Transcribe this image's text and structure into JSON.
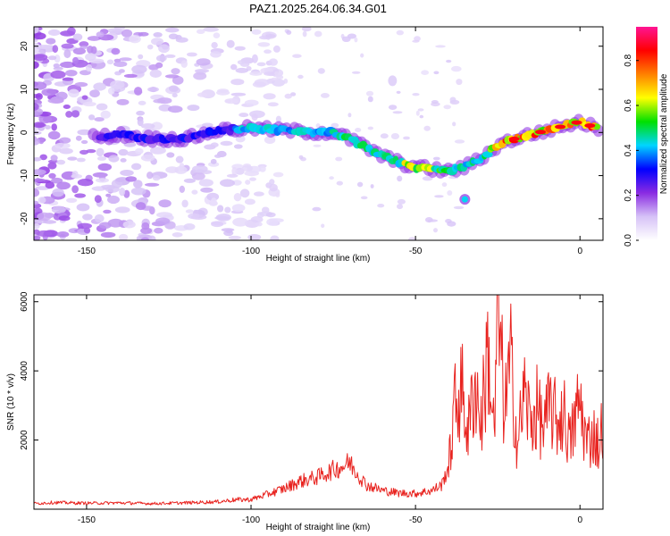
{
  "title": "PAZ1.2025.264.06.34.G01",
  "colors": {
    "axis": "#000000",
    "snr_line": "#e8231f"
  },
  "chart_data": [
    {
      "type": "heatmap",
      "name": "spectrogram",
      "xlabel": "Height of straight line (km)",
      "ylabel": "Frequency (Hz)",
      "xlim": [
        -166,
        7
      ],
      "ylim": [
        -25,
        24.5
      ],
      "xticks": [
        -150,
        -100,
        -50,
        0
      ],
      "xtick_labels": [
        "-150",
        "-100",
        "-50",
        "0"
      ],
      "yticks": [
        -20,
        -10,
        0,
        10,
        20
      ],
      "ytick_labels": [
        "-20",
        "-10",
        "0",
        "10",
        "20"
      ],
      "ridge_x": [
        -145,
        -140,
        -130,
        -120,
        -110,
        -100,
        -90,
        -80,
        -75,
        -70,
        -65,
        -60,
        -55,
        -50,
        -45,
        -40,
        -35,
        -30,
        -25,
        -20,
        -15,
        -10,
        -5,
        0,
        5
      ],
      "ridge_f": [
        -1.0,
        -0.5,
        -1.5,
        -1.5,
        0.5,
        1.0,
        0.5,
        0.0,
        0.0,
        -1.5,
        -3.5,
        -5.5,
        -7.0,
        -8.0,
        -8.5,
        -9.0,
        -8.0,
        -6.0,
        -3.0,
        -1.5,
        -0.5,
        0.5,
        1.5,
        2.5,
        1.0
      ],
      "isolated_peak": {
        "x": -35,
        "f": -15.5
      },
      "colorbar": {
        "label": "Normalized spectral amplitude",
        "range": [
          0,
          0.95
        ],
        "ticks": [
          0.0,
          0.2,
          0.4,
          0.6,
          0.8
        ],
        "tick_labels": [
          "0.0",
          "0.2",
          "0.4",
          "0.6",
          "0.8"
        ],
        "colors": [
          "#ffffff",
          "#d6c2f7",
          "#8a2be2",
          "#0000ff",
          "#00d5ff",
          "#00e000",
          "#ffff00",
          "#ff8000",
          "#ff0000",
          "#ff1493"
        ]
      }
    },
    {
      "type": "line",
      "name": "snr",
      "xlabel": "Height of straight line (km)",
      "ylabel": "SNR (10 * v/v)",
      "xlim": [
        -166,
        7
      ],
      "ylim": [
        0,
        6200
      ],
      "xticks": [
        -150,
        -100,
        -50,
        0
      ],
      "xtick_labels": [
        "-150",
        "-100",
        "-50",
        "0"
      ],
      "yticks": [
        2000,
        4000,
        6000
      ],
      "ytick_labels": [
        "2000",
        "4000",
        "6000"
      ],
      "series": [
        {
          "name": "SNR",
          "x": [
            -166,
            -160,
            -150,
            -140,
            -130,
            -120,
            -110,
            -105,
            -100,
            -95,
            -90,
            -85,
            -80,
            -75,
            -72,
            -70,
            -68,
            -65,
            -60,
            -55,
            -50,
            -45,
            -42,
            -40,
            -38,
            -36,
            -34,
            -32,
            -30,
            -28,
            -26,
            -25,
            -23,
            -21,
            -19,
            -17,
            -15,
            -13,
            -11,
            -9,
            -7,
            -5,
            -3,
            -1,
            0,
            2,
            4,
            6,
            7
          ],
          "y": [
            150,
            180,
            160,
            170,
            150,
            170,
            200,
            250,
            260,
            400,
            550,
            750,
            850,
            1050,
            1150,
            1250,
            1000,
            650,
            500,
            430,
            420,
            500,
            650,
            1150,
            3000,
            3500,
            2200,
            3700,
            2500,
            4600,
            2000,
            6200,
            2800,
            4200,
            1800,
            3400,
            2500,
            2900,
            2300,
            3000,
            2500,
            2800,
            1900,
            2800,
            3100,
            1900,
            2200,
            1800,
            2700
          ]
        }
      ]
    }
  ]
}
